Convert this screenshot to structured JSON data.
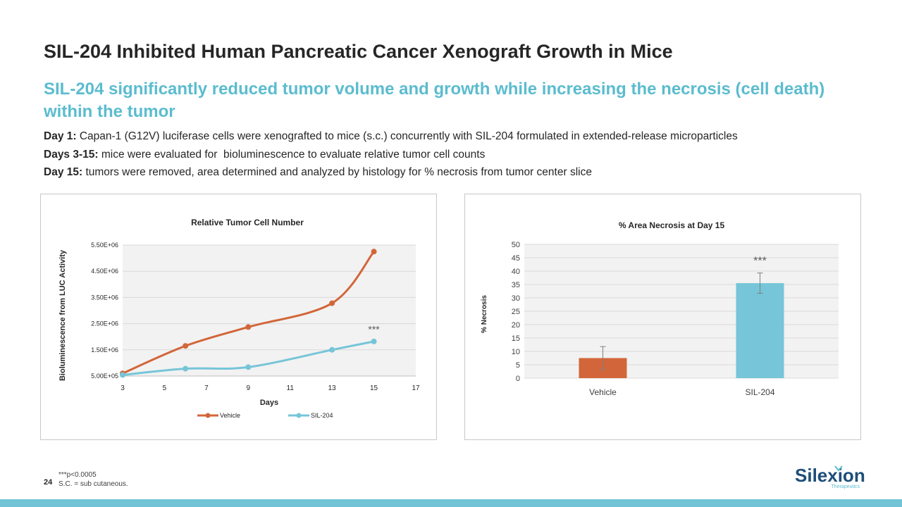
{
  "slide": {
    "title": "SIL-204 Inhibited Human Pancreatic Cancer Xenograft Growth in Mice",
    "subtitle": "SIL-204 significantly reduced tumor volume and growth while increasing the necrosis (cell death) within the tumor",
    "bullets": [
      {
        "label": "Day 1:",
        "text": " Capan-1 (G12V) luciferase cells were xenografted to mice (s.c.) concurrently with SIL-204 formulated in extended-release microparticles"
      },
      {
        "label": "Days 3-15:",
        "text": " mice were evaluated for  bioluminescence to evaluate relative tumor cell counts"
      },
      {
        "label": "Day 15:",
        "text": " tumors were removed, area determined and analyzed by histology for % necrosis from tumor center slice"
      }
    ],
    "footnote_1": "***p<0.0005",
    "footnote_2": "S.C. = sub cutaneous.",
    "page_number": "24",
    "logo": {
      "name": "Silexion",
      "tagline": "Therapeutics"
    }
  },
  "colors": {
    "vehicle": "#d2663a",
    "sil204": "#76c5d8",
    "accent": "#5bbccf",
    "bar": "#72c3d5"
  },
  "chart_data": [
    {
      "type": "line",
      "title": "Relative Tumor Cell Number",
      "xlabel": "Days",
      "ylabel": "Bioluminescence from LUC Activity",
      "xlim": [
        3,
        17
      ],
      "ylim": [
        500000,
        5500000
      ],
      "xticks": [
        3,
        5,
        7,
        9,
        11,
        13,
        15,
        17
      ],
      "yticks": [
        500000,
        1500000,
        2500000,
        3500000,
        4500000,
        5500000
      ],
      "ytick_labels": [
        "5.00E+05",
        "1.50E+06",
        "2.50E+06",
        "3.50E+06",
        "4.50E+06",
        "5.50E+06"
      ],
      "series": [
        {
          "name": "Vehicle",
          "x": [
            3,
            6,
            9,
            13,
            15
          ],
          "y": [
            600000,
            1650000,
            2370000,
            3280000,
            5250000
          ]
        },
        {
          "name": "SIL-204",
          "x": [
            3,
            6,
            9,
            13,
            15
          ],
          "y": [
            540000,
            780000,
            840000,
            1500000,
            1820000
          ]
        }
      ],
      "annotation": {
        "text": "***",
        "x": 15,
        "y": 2150000
      },
      "legend": "bottom"
    },
    {
      "type": "bar",
      "title": "% Area Necrosis at Day 15",
      "xlabel": "",
      "ylabel": "% Necrosis",
      "categories": [
        "Vehicle",
        "SIL-204"
      ],
      "values": [
        7.5,
        35.5
      ],
      "errors": [
        4.3,
        3.8
      ],
      "ylim": [
        0,
        50
      ],
      "yticks": [
        0,
        5,
        10,
        15,
        20,
        25,
        30,
        35,
        40,
        45,
        50
      ],
      "annotation": {
        "text": "***",
        "category": "SIL-204"
      }
    }
  ]
}
